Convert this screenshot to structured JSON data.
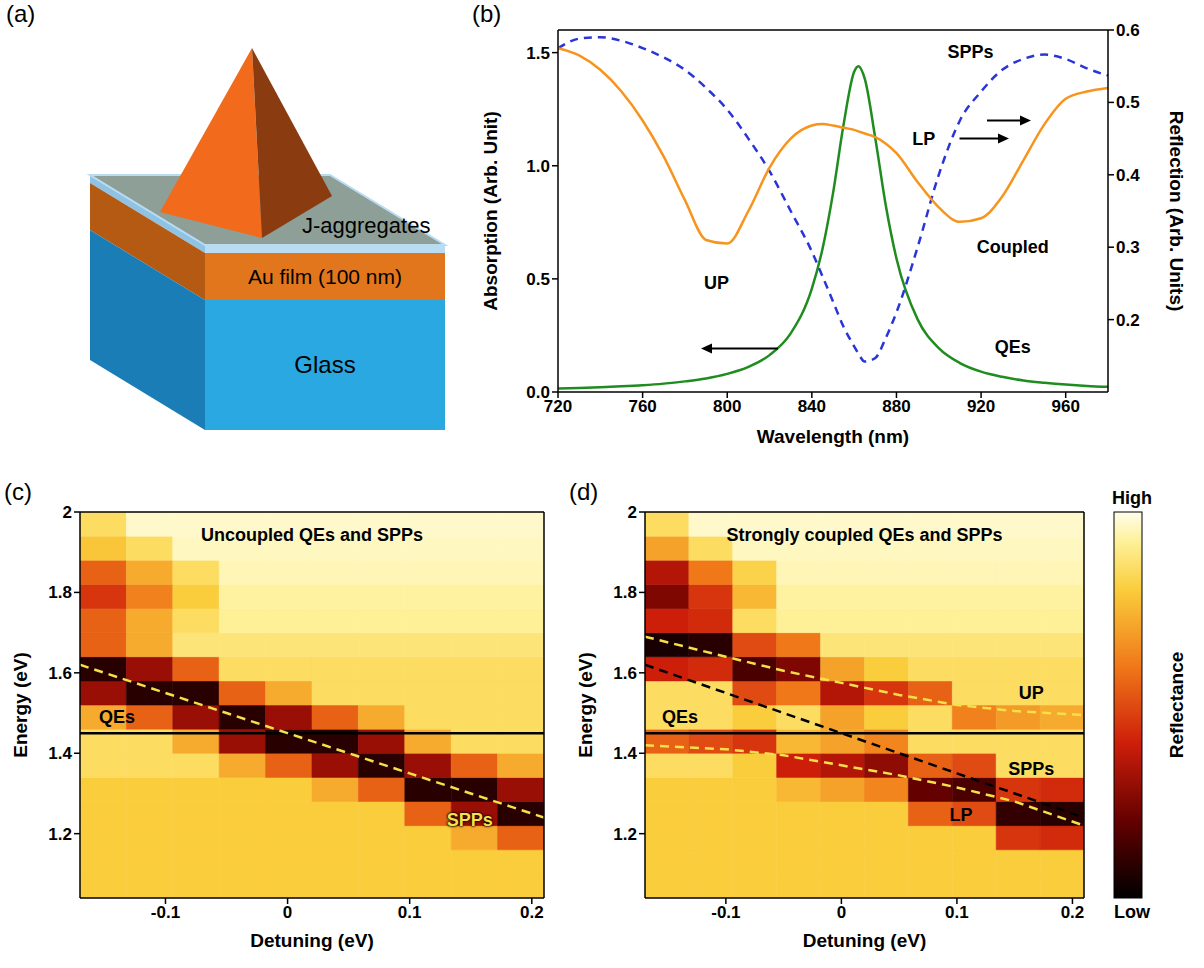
{
  "diagram": {
    "panel": "(a)",
    "labels": [
      "J-aggregates",
      "Au film (100 nm)",
      "Glass"
    ]
  },
  "colorbar": {
    "label": "Reflectance",
    "range": [
      0,
      1
    ],
    "ticks": [
      {
        "value": 1,
        "label": "High"
      },
      {
        "value": 0,
        "label": "Low"
      }
    ]
  },
  "chart_data": [
    {
      "panel": "(b)",
      "type": "line",
      "x_label": "Wavelength (nm)",
      "y_label": "Absorption (Arb. Unit)",
      "y2_label": "Reflection (Arb. Units)",
      "grid": false,
      "xlim": [
        720,
        980
      ],
      "xticks": [
        720,
        760,
        800,
        840,
        880,
        920,
        960
      ],
      "ylim": [
        0,
        1.6
      ],
      "yticks": [
        {
          "value": 0,
          "label": "0.0"
        },
        0.5,
        {
          "value": 1,
          "label": "1.0"
        },
        1.5
      ],
      "y2lim": [
        0.1,
        0.6
      ],
      "y2ticks": [
        0.2,
        0.3,
        0.4,
        0.5,
        0.6
      ],
      "x": [
        720,
        730,
        740,
        750,
        760,
        770,
        780,
        790,
        800,
        810,
        820,
        830,
        840,
        845,
        850,
        855,
        860,
        862,
        865,
        870,
        875,
        880,
        890,
        900,
        910,
        920,
        930,
        940,
        950,
        960,
        970,
        980
      ],
      "series": [
        {
          "name": "QEs",
          "color": "#1e8c1e",
          "line_style": "solid",
          "values": [
            0.016,
            0.018,
            0.021,
            0.025,
            0.03,
            0.037,
            0.047,
            0.06,
            0.08,
            0.111,
            0.163,
            0.259,
            0.457,
            0.631,
            0.878,
            1.182,
            1.415,
            1.44,
            1.385,
            1.121,
            0.822,
            0.59,
            0.321,
            0.194,
            0.128,
            0.09,
            0.067,
            0.051,
            0.041,
            0.033,
            0.027,
            0.023
          ]
        },
        {
          "name": "SPPs",
          "color": "#2a35d8",
          "line_style": "dashed",
          "axis": "y2",
          "values": [
            0.575,
            0.588,
            0.59,
            0.585,
            0.575,
            0.562,
            0.545,
            0.52,
            0.49,
            0.45,
            0.405,
            0.35,
            0.294,
            0.26,
            0.225,
            0.19,
            0.163,
            0.153,
            0.142,
            0.147,
            0.175,
            0.21,
            0.3,
            0.4,
            0.475,
            0.515,
            0.545,
            0.56,
            0.566,
            0.56,
            0.547,
            0.537
          ]
        },
        {
          "name": "Coupled",
          "color": "#f7941d",
          "line_style": "solid",
          "axis": "y2",
          "values": [
            0.575,
            0.565,
            0.545,
            0.515,
            0.475,
            0.425,
            0.365,
            0.31,
            0.305,
            0.35,
            0.41,
            0.45,
            0.468,
            0.47,
            0.468,
            0.465,
            0.462,
            0.46,
            0.457,
            0.452,
            0.443,
            0.43,
            0.39,
            0.355,
            0.335,
            0.34,
            0.37,
            0.42,
            0.47,
            0.505,
            0.515,
            0.52
          ]
        }
      ],
      "annotations": [
        "UP",
        "LP"
      ]
    },
    {
      "panel": "(c)",
      "type": "heatmap",
      "title": "Uncoupled QEs and SPPs",
      "x_label": "Detuning (eV)",
      "y_label": "Energy (eV)",
      "xlim": [
        -0.17,
        0.21
      ],
      "xticks": [
        -0.1,
        0,
        0.1,
        0.2
      ],
      "ylim": [
        1.04,
        2
      ],
      "yticks": [
        1.2,
        1.4,
        1.6,
        1.8,
        2
      ],
      "heatmap": {
        "x_bins": [
          -0.17,
          -0.132,
          -0.094,
          -0.056,
          -0.018,
          0.02,
          0.058,
          0.096,
          0.134,
          0.172,
          0.21
        ],
        "y_bins": [
          1.04,
          1.1,
          1.16,
          1.22,
          1.28,
          1.34,
          1.4,
          1.46,
          1.52,
          1.58,
          1.64,
          1.7,
          1.76,
          1.82,
          1.88,
          1.94,
          2
        ],
        "values": [
          [
            0.8,
            0.8,
            0.8,
            0.8,
            0.8,
            0.8,
            0.8,
            0.8,
            0.8,
            0.8
          ],
          [
            0.8,
            0.8,
            0.8,
            0.8,
            0.8,
            0.8,
            0.8,
            0.8,
            0.8,
            0.8
          ],
          [
            0.8,
            0.8,
            0.8,
            0.8,
            0.8,
            0.8,
            0.8,
            0.8,
            0.72,
            0.55
          ],
          [
            0.8,
            0.8,
            0.8,
            0.8,
            0.8,
            0.8,
            0.8,
            0.55,
            0.3,
            0.08
          ],
          [
            0.8,
            0.8,
            0.8,
            0.8,
            0.8,
            0.72,
            0.55,
            0.08,
            0.08,
            0.3
          ],
          [
            0.85,
            0.85,
            0.85,
            0.72,
            0.55,
            0.3,
            0.08,
            0.3,
            0.55,
            0.72
          ],
          [
            0.85,
            0.85,
            0.72,
            0.3,
            0.08,
            0.08,
            0.3,
            0.72,
            0.85,
            0.85
          ],
          [
            0.72,
            0.55,
            0.3,
            0.08,
            0.3,
            0.55,
            0.72,
            0.85,
            0.85,
            0.85
          ],
          [
            0.3,
            0.08,
            0.08,
            0.55,
            0.72,
            0.85,
            0.85,
            0.85,
            0.85,
            0.85
          ],
          [
            0.08,
            0.3,
            0.55,
            0.85,
            0.85,
            0.85,
            0.85,
            0.85,
            0.85,
            0.85
          ],
          [
            0.55,
            0.72,
            0.88,
            0.88,
            0.88,
            0.88,
            0.88,
            0.88,
            0.88,
            0.88
          ],
          [
            0.55,
            0.72,
            0.85,
            0.92,
            0.92,
            0.92,
            0.92,
            0.92,
            0.92,
            0.92
          ],
          [
            0.45,
            0.62,
            0.8,
            0.93,
            0.93,
            0.93,
            0.93,
            0.93,
            0.93,
            0.93
          ],
          [
            0.55,
            0.72,
            0.85,
            0.95,
            0.95,
            0.95,
            0.95,
            0.95,
            0.95,
            0.95
          ],
          [
            0.78,
            0.85,
            0.96,
            0.96,
            0.96,
            0.96,
            0.96,
            0.96,
            0.96,
            0.96
          ],
          [
            0.85,
            0.97,
            0.97,
            0.97,
            0.97,
            0.97,
            0.97,
            0.97,
            0.97,
            0.97
          ]
        ]
      },
      "x": [
        -0.17,
        -0.1,
        -0.05,
        0,
        0.05,
        0.1,
        0.15,
        0.21
      ],
      "series": [
        {
          "name": "QEs",
          "type": "line",
          "color": "#000000",
          "line_style": "solid",
          "values": [
            1.45,
            1.45,
            1.45,
            1.45,
            1.45,
            1.45,
            1.45,
            1.45
          ]
        },
        {
          "name": "SPPs",
          "type": "line",
          "color": "#f5e04a",
          "line_style": "dashed",
          "values": [
            1.62,
            1.55,
            1.5,
            1.45,
            1.4,
            1.35,
            1.3,
            1.24
          ]
        }
      ]
    },
    {
      "panel": "(d)",
      "type": "heatmap",
      "title": "Strongly coupled QEs and SPPs",
      "x_label": "Detuning (eV)",
      "y_label": "Energy (eV)",
      "xlim": [
        -0.17,
        0.21
      ],
      "xticks": [
        -0.1,
        0,
        0.1,
        0.2
      ],
      "ylim": [
        1.04,
        2
      ],
      "yticks": [
        1.2,
        1.4,
        1.6,
        1.8,
        2
      ],
      "heatmap": {
        "x_bins": [
          -0.17,
          -0.132,
          -0.094,
          -0.056,
          -0.018,
          0.02,
          0.058,
          0.096,
          0.134,
          0.172,
          0.21
        ],
        "y_bins": [
          1.04,
          1.1,
          1.16,
          1.22,
          1.28,
          1.34,
          1.4,
          1.46,
          1.52,
          1.58,
          1.64,
          1.7,
          1.76,
          1.82,
          1.88,
          1.94,
          2
        ],
        "values": [
          [
            0.8,
            0.8,
            0.8,
            0.8,
            0.8,
            0.8,
            0.8,
            0.8,
            0.8,
            0.8
          ],
          [
            0.8,
            0.8,
            0.8,
            0.8,
            0.8,
            0.8,
            0.8,
            0.8,
            0.8,
            0.8
          ],
          [
            0.8,
            0.8,
            0.8,
            0.8,
            0.8,
            0.8,
            0.8,
            0.8,
            0.45,
            0.43
          ],
          [
            0.8,
            0.8,
            0.8,
            0.8,
            0.8,
            0.8,
            0.55,
            0.5,
            0.1,
            0.08
          ],
          [
            0.8,
            0.8,
            0.8,
            0.75,
            0.7,
            0.63,
            0.2,
            0.15,
            0.45,
            0.43
          ],
          [
            0.85,
            0.85,
            0.8,
            0.4,
            0.35,
            0.28,
            0.55,
            0.5,
            0.85,
            0.85
          ],
          [
            0.55,
            0.5,
            0.45,
            0.75,
            0.7,
            0.63,
            0.85,
            0.85,
            0.85,
            0.85
          ],
          [
            0.85,
            0.85,
            0.8,
            0.85,
            0.7,
            0.8,
            0.85,
            0.62,
            0.68,
            0.72
          ],
          [
            0.85,
            0.85,
            0.5,
            0.6,
            0.35,
            0.45,
            0.55,
            0.85,
            0.85,
            0.85
          ],
          [
            0.4,
            0.43,
            0.15,
            0.25,
            0.7,
            0.8,
            0.85,
            0.85,
            0.85,
            0.85
          ],
          [
            0.05,
            0.08,
            0.5,
            0.6,
            0.88,
            0.88,
            0.88,
            0.88,
            0.88,
            0.88
          ],
          [
            0.4,
            0.43,
            0.85,
            0.92,
            0.92,
            0.92,
            0.92,
            0.92,
            0.92,
            0.92
          ],
          [
            0.25,
            0.45,
            0.75,
            0.93,
            0.93,
            0.93,
            0.93,
            0.93,
            0.93,
            0.93
          ],
          [
            0.35,
            0.6,
            0.82,
            0.95,
            0.95,
            0.95,
            0.95,
            0.95,
            0.95,
            0.95
          ],
          [
            0.7,
            0.85,
            0.96,
            0.96,
            0.96,
            0.96,
            0.96,
            0.96,
            0.96,
            0.96
          ],
          [
            0.85,
            0.97,
            0.97,
            0.97,
            0.97,
            0.97,
            0.97,
            0.97,
            0.97,
            0.97
          ]
        ]
      },
      "x": [
        -0.17,
        -0.1,
        -0.05,
        0,
        0.05,
        0.1,
        0.15,
        0.21
      ],
      "series": [
        {
          "name": "QEs",
          "type": "line",
          "color": "#000000",
          "line_style": "solid",
          "values": [
            1.45,
            1.45,
            1.45,
            1.45,
            1.45,
            1.45,
            1.45,
            1.45
          ]
        },
        {
          "name": "SPPs",
          "type": "line",
          "color": "#000000",
          "line_style": "dashed",
          "values": [
            1.62,
            1.55,
            1.5,
            1.45,
            1.4,
            1.35,
            1.3,
            1.24
          ]
        },
        {
          "name": "UP",
          "type": "line",
          "color": "#f5e04a",
          "line_style": "dashed",
          "values": [
            1.69,
            1.64,
            1.605,
            1.575,
            1.545,
            1.52,
            1.505,
            1.495
          ]
        },
        {
          "name": "LP",
          "type": "line",
          "color": "#f5e04a",
          "line_style": "dashed",
          "values": [
            1.42,
            1.41,
            1.395,
            1.37,
            1.345,
            1.315,
            1.28,
            1.22
          ]
        }
      ]
    }
  ]
}
